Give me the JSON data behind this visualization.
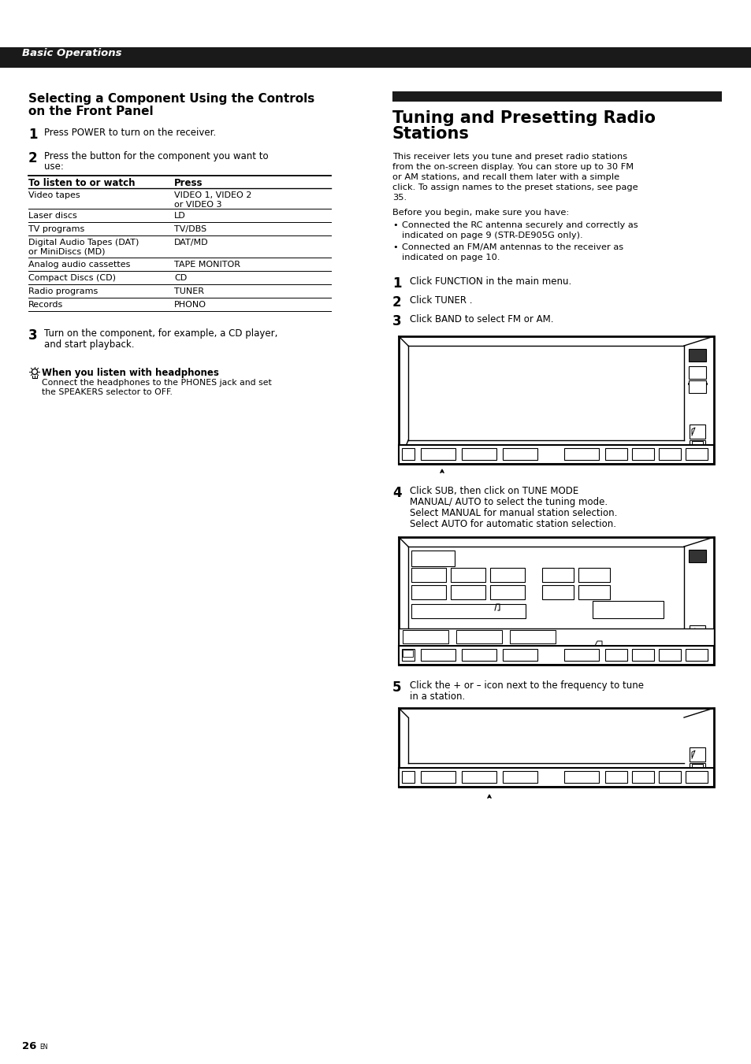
{
  "page_bg": "#ffffff",
  "header_bg": "#1a1a1a",
  "header_text": "Basic Operations",
  "header_text_color": "#ffffff",
  "table_header_col1": "To listen to or watch",
  "table_header_col2": "Press",
  "table_rows": [
    [
      "Video tapes",
      "VIDEO 1, VIDEO 2\nor VIDEO 3"
    ],
    [
      "Laser discs",
      "LD"
    ],
    [
      "TV programs",
      "TV/DBS"
    ],
    [
      "Digital Audio Tapes (DAT)\nor MiniDiscs (MD)",
      "DAT/MD"
    ],
    [
      "Analog audio cassettes",
      "TAPE MONITOR"
    ],
    [
      "Compact Discs (CD)",
      "CD"
    ],
    [
      "Radio programs",
      "TUNER"
    ],
    [
      "Records",
      "PHONO"
    ]
  ],
  "right_intro": "This receiver lets you tune and preset radio stations\nfrom the on-screen display. You can store up to 30 FM\nor AM stations, and recall them later with a simple\nclick. To assign names to the preset stations, see page\n35.",
  "right_before": "Before you begin, make sure you have:",
  "right_bullet1": "Connected the RC antenna securely and correctly as\nindicated on page 9 (STR-DE905G only).",
  "right_bullet2": "Connected an FM/AM antennas to the receiver as\nindicated on page 10.",
  "right_step1": "Click FUNCTION in the main menu.",
  "right_step2": "Click TUNER .",
  "right_step3": "Click BAND to select FM or AM.",
  "right_step4_line1": "Click SUB, then click on TUNE MODE",
  "right_step4_line2": "MANUAL/ AUTO to select the tuning mode.",
  "right_step4_line3": "Select MANUAL for manual station selection.",
  "right_step4_line4": "Select AUTO for automatic station selection.",
  "right_step5_line1": "Click the + or – icon next to the frequency to tune",
  "right_step5_line2": "in a station.",
  "headphone_title": "When you listen with headphones",
  "headphone_text1": "Connect the headphones to the PHONES jack and set",
  "headphone_text2": "the SPEAKERS selector to OFF.",
  "page_number": "26"
}
